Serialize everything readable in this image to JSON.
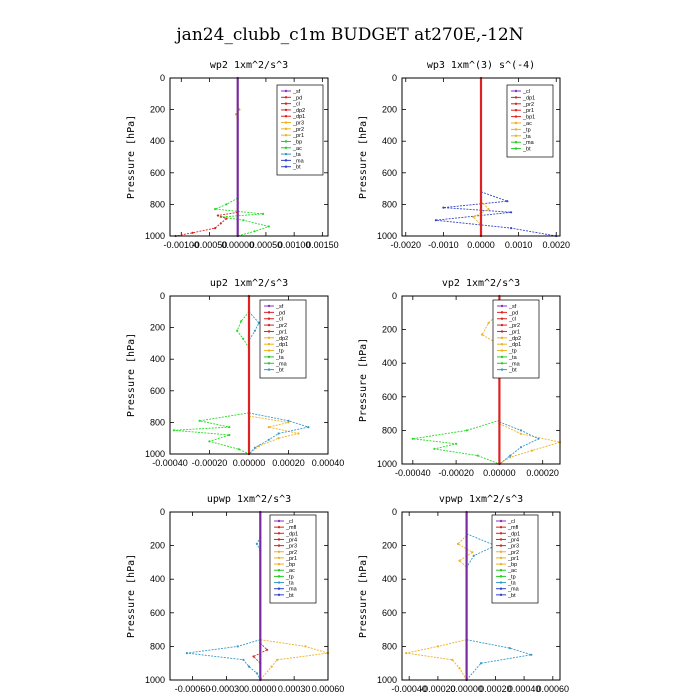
{
  "title": "jan24_clubb_c1m  BUDGET at270E,-12N",
  "chart_data": [
    {
      "type": "line",
      "title": "wp2  1xm^2/s^3",
      "ylabel": "Pressure [hPa]",
      "ylim": [
        1000,
        0
      ],
      "yticks": [
        "0",
        "200",
        "400",
        "600",
        "800",
        "1000"
      ],
      "xlim": [
        -0.0012,
        0.0016
      ],
      "xticks": [
        "-0.00100",
        "-0.00050",
        "0.00000",
        "0.00050",
        "0.00100",
        "0.00150"
      ],
      "legend": [
        "_sf",
        "_pd",
        "_cl",
        "_dp2",
        "_dp1",
        "_pr3",
        "_pr2",
        "_pr1",
        "_bp",
        "_ac",
        "_ta",
        "_ma",
        "_bt"
      ],
      "series": [
        {
          "name": "_pr1",
          "color": "#22dd22",
          "p": [
            760,
            800,
            830,
            860,
            880,
            900,
            940,
            970,
            1000
          ],
          "x": [
            0,
            -0.0002,
            -0.0004,
            0.00045,
            -0.0003,
            0.0001,
            0.00055,
            0.0003,
            0
          ]
        },
        {
          "name": "_dp1",
          "color": "#dd2222",
          "p": [
            850,
            870,
            890,
            920,
            950,
            980,
            1000
          ],
          "x": [
            0,
            -0.00035,
            -0.0002,
            -0.0003,
            -0.0004,
            -0.0008,
            -0.0011
          ]
        },
        {
          "name": "_ac",
          "color": "#ddaa00",
          "p": [
            170,
            200,
            230,
            260
          ],
          "x": [
            0,
            3e-05,
            -3e-05,
            0
          ]
        },
        {
          "name": "_bt",
          "color": "#7a2aa0",
          "p": [
            0,
            1000
          ],
          "x": [
            0,
            0
          ]
        }
      ]
    },
    {
      "type": "line",
      "title": "wp3  1xm^(3) s^(-4)",
      "ylabel": "Pressure [hPa]",
      "ylim": [
        1000,
        0
      ],
      "yticks": [
        "0",
        "200",
        "400",
        "600",
        "800",
        "1000"
      ],
      "xlim": [
        -0.0021,
        0.0021
      ],
      "xticks": [
        "-0.0020",
        "-0.0010",
        "0.0000",
        "0.0010",
        "0.0020"
      ],
      "legend": [
        "_cl",
        "_dp1",
        "_pr2",
        "_pr1",
        "_bp1",
        "_ac",
        "_tp",
        "_ta",
        "_ma",
        "_bt"
      ],
      "series": [
        {
          "name": "_tp",
          "color": "#3344cc",
          "p": [
            720,
            780,
            820,
            850,
            900,
            950,
            1000
          ],
          "x": [
            0,
            0.0007,
            -0.001,
            0.0008,
            -0.0012,
            0.0008,
            0.002
          ]
        },
        {
          "name": "_pr2",
          "color": "#f0b020",
          "p": [
            780,
            830,
            880,
            930
          ],
          "x": [
            0,
            0.0002,
            -0.0002,
            0
          ]
        },
        {
          "name": "_bt",
          "color": "#dd2222",
          "p": [
            0,
            1000
          ],
          "x": [
            0,
            0
          ]
        }
      ]
    },
    {
      "type": "line",
      "title": "up2  1xm^2/s^3",
      "ylabel": "Pressure [hPa]",
      "ylim": [
        1000,
        0
      ],
      "yticks": [
        "0",
        "200",
        "400",
        "600",
        "800",
        "1000"
      ],
      "xlim": [
        -0.0004,
        0.0004
      ],
      "xticks": [
        "-0.00040",
        "-0.00020",
        "0.00000",
        "0.00020",
        "0.00040"
      ],
      "legend": [
        "_sf",
        "_pd",
        "_cl",
        "_pr2",
        "_pr1",
        "_dp2",
        "_dp1",
        "_tp",
        "_ta",
        "_ma",
        "_bt"
      ],
      "series": [
        {
          "name": "_dp1",
          "color": "#22dd22",
          "p": [
            740,
            790,
            830,
            850,
            880,
            920,
            970,
            1000
          ],
          "x": [
            0,
            -0.00025,
            -0.0001,
            -0.00038,
            -0.0001,
            -0.0002,
            -5e-05,
            0
          ]
        },
        {
          "name": "_pr1",
          "color": "#f0b020",
          "p": [
            760,
            800,
            830,
            870,
            900,
            950,
            1000
          ],
          "x": [
            0,
            0.0002,
            0.0001,
            0.00025,
            0.00015,
            5e-05,
            0
          ]
        },
        {
          "name": "_tp",
          "color": "#3399cc",
          "p": [
            740,
            790,
            830,
            870,
            910,
            960,
            1000
          ],
          "x": [
            0,
            0.0002,
            0.0003,
            0.00015,
            0.0001,
            3e-05,
            0
          ]
        },
        {
          "name": "_dp2",
          "color": "#22dd22",
          "p": [
            100,
            160,
            220,
            270,
            330
          ],
          "x": [
            0,
            -4e-05,
            -6e-05,
            -3e-05,
            0
          ]
        },
        {
          "name": "_ta",
          "color": "#3399cc",
          "p": [
            100,
            170,
            220,
            280
          ],
          "x": [
            0,
            5e-05,
            3e-05,
            0
          ]
        },
        {
          "name": "_bt",
          "color": "#dd2222",
          "p": [
            0,
            1000
          ],
          "x": [
            0,
            0
          ]
        }
      ]
    },
    {
      "type": "line",
      "title": "vp2  1xm^2/s^3",
      "ylabel": "Pressure [hPa]",
      "ylim": [
        1000,
        0
      ],
      "yticks": [
        "0",
        "200",
        "400",
        "600",
        "800",
        "1000"
      ],
      "xlim": [
        -0.00045,
        0.00028
      ],
      "xticks": [
        "-0.00040",
        "-0.00020",
        "0.00000",
        "0.00020"
      ],
      "legend": [
        "_sf",
        "_pd",
        "_cl",
        "_pr2",
        "_pr1",
        "_dp2",
        "_dp1",
        "_tp",
        "_ta",
        "_ma",
        "_bt"
      ],
      "series": [
        {
          "name": "_dp1",
          "color": "#22dd22",
          "p": [
            740,
            800,
            850,
            880,
            910,
            950,
            1000
          ],
          "x": [
            0,
            -0.00015,
            -0.0004,
            -0.0002,
            -0.0003,
            -0.0001,
            0
          ]
        },
        {
          "name": "_pr1",
          "color": "#f0b020",
          "p": [
            760,
            820,
            870,
            920,
            960,
            1000
          ],
          "x": [
            0,
            0.0001,
            0.00028,
            0.00015,
            5e-05,
            0
          ]
        },
        {
          "name": "_tp",
          "color": "#3399cc",
          "p": [
            750,
            800,
            850,
            900,
            950,
            1000
          ],
          "x": [
            0,
            0.0001,
            0.00018,
            0.0001,
            5e-05,
            0
          ]
        },
        {
          "name": "_pr2",
          "color": "#f0b020",
          "p": [
            100,
            160,
            230,
            290
          ],
          "x": [
            0,
            -5e-05,
            -8e-05,
            0
          ]
        },
        {
          "name": "_ta",
          "color": "#3399cc",
          "p": [
            100,
            200,
            250,
            320
          ],
          "x": [
            0,
            8e-05,
            4e-05,
            0
          ]
        },
        {
          "name": "_bt",
          "color": "#dd2222",
          "p": [
            0,
            1000
          ],
          "x": [
            0,
            0
          ]
        }
      ]
    },
    {
      "type": "line",
      "title": "upwp  1xm^2/s^3",
      "ylabel": "Pressure [hPa]",
      "ylim": [
        1000,
        0
      ],
      "yticks": [
        "0",
        "200",
        "400",
        "600",
        "800",
        "1000"
      ],
      "xlim": [
        -0.0008,
        0.0006
      ],
      "xticks": [
        "-0.00060",
        "-0.00030",
        "0.00000",
        "0.00030",
        "0.00060"
      ],
      "legend": [
        "_cl",
        "_mfl",
        "_dp1",
        "_pr4",
        "_pr3",
        "_pr2",
        "_pr1",
        "_bp",
        "_ac",
        "_tp",
        "_ta",
        "_ma",
        "_bt"
      ],
      "series": [
        {
          "name": "_tp",
          "color": "#3399cc",
          "p": [
            760,
            800,
            840,
            880,
            920,
            960,
            1000
          ],
          "x": [
            0,
            -0.0002,
            -0.00065,
            -0.00015,
            -0.0001,
            -3e-05,
            0
          ]
        },
        {
          "name": "_pr1",
          "color": "#f0b020",
          "p": [
            760,
            800,
            840,
            880,
            920,
            1000
          ],
          "x": [
            0,
            0.0004,
            0.0006,
            0.00015,
            0.0001,
            0
          ]
        },
        {
          "name": "_dp1",
          "color": "#dd2222",
          "p": [
            780,
            820,
            860,
            900
          ],
          "x": [
            0,
            6e-05,
            -6e-05,
            0
          ]
        },
        {
          "name": "_ta",
          "color": "#3399cc",
          "p": [
            150,
            190,
            230
          ],
          "x": [
            0,
            -3e-05,
            0
          ]
        },
        {
          "name": "_bt",
          "color": "#7a2aa0",
          "p": [
            0,
            1000
          ],
          "x": [
            0,
            0
          ]
        }
      ]
    },
    {
      "type": "line",
      "title": "vpwp  1xm^2/s^3",
      "ylabel": "Pressure [hPa]",
      "ylim": [
        1000,
        0
      ],
      "yticks": [
        "0",
        "200",
        "400",
        "600",
        "800",
        "1000"
      ],
      "xlim": [
        -0.00045,
        0.00065
      ],
      "xticks": [
        "-0.00040",
        "-0.00020",
        "0.00000",
        "0.00020",
        "0.00040",
        "0.00060"
      ],
      "legend": [
        "_cl",
        "_mfl",
        "_dp1",
        "_pr4",
        "_pr3",
        "_pr2",
        "_pr1",
        "_bp",
        "_ac",
        "_tp",
        "_ta",
        "_ma",
        "_bt"
      ],
      "series": [
        {
          "name": "_pr1",
          "color": "#f0b020",
          "p": [
            760,
            800,
            840,
            880,
            930,
            1000
          ],
          "x": [
            0,
            -0.0002,
            -0.00042,
            -0.0001,
            -5e-05,
            0
          ]
        },
        {
          "name": "_tp",
          "color": "#3399cc",
          "p": [
            760,
            810,
            850,
            900,
            1000
          ],
          "x": [
            0,
            0.0003,
            0.00045,
            0.0001,
            0
          ]
        },
        {
          "name": "_pr2",
          "color": "#f0b020",
          "p": [
            140,
            190,
            240,
            290,
            330
          ],
          "x": [
            0,
            -6e-05,
            4e-05,
            -5e-05,
            0
          ]
        },
        {
          "name": "_ta",
          "color": "#3399cc",
          "p": [
            130,
            200,
            260,
            330
          ],
          "x": [
            0,
            0.0002,
            5e-05,
            0
          ]
        },
        {
          "name": "_bt",
          "color": "#7a2aa0",
          "p": [
            0,
            1000
          ],
          "x": [
            0,
            0
          ]
        }
      ]
    }
  ]
}
